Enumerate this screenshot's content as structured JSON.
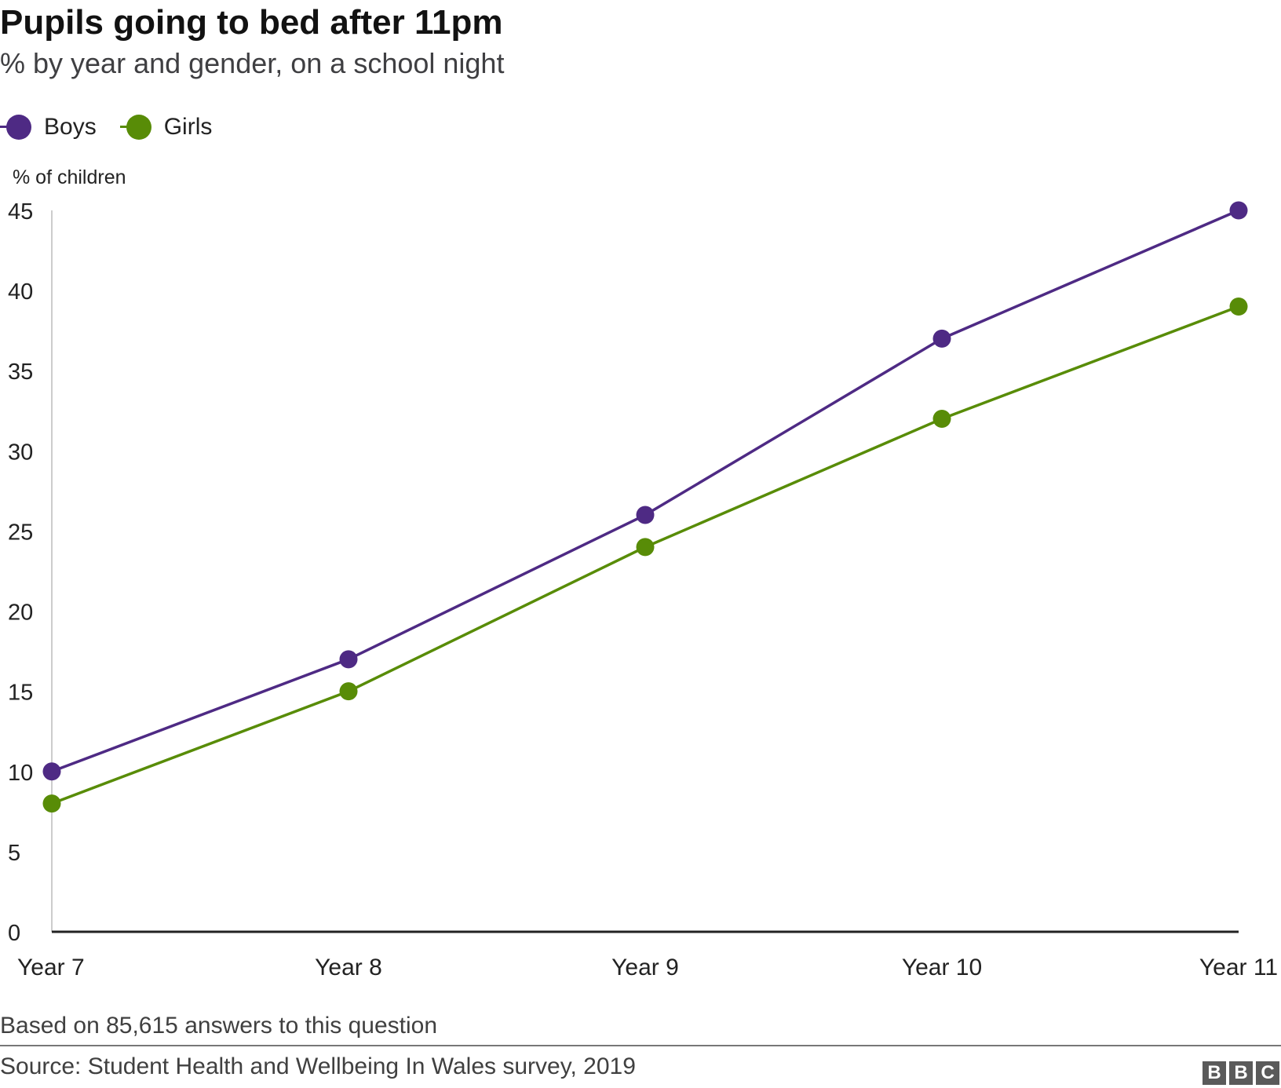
{
  "title": "Pupils going to bed after 11pm",
  "subtitle": "% by year and gender, on a school night",
  "legend": [
    {
      "label": "Boys",
      "color": "#4e2a84"
    },
    {
      "label": "Girls",
      "color": "#588c07"
    }
  ],
  "footer": {
    "note": "Based on 85,615 answers to this question",
    "source": "Source: Student Health and Wellbeing In Wales survey, 2019",
    "logo_letters": [
      "B",
      "B",
      "C"
    ]
  },
  "chart_data": {
    "type": "line",
    "title": "Pupils going to bed after 11pm",
    "subtitle": "% by year and gender, on a school night",
    "ylabel": "% of children",
    "xlabel": "",
    "categories": [
      "Year 7",
      "Year 8",
      "Year 9",
      "Year 10",
      "Year 11"
    ],
    "series": [
      {
        "name": "Boys",
        "color": "#4e2a84",
        "values": [
          10,
          17,
          26,
          37,
          45
        ]
      },
      {
        "name": "Girls",
        "color": "#588c07",
        "values": [
          8,
          15,
          24,
          32,
          39
        ]
      }
    ],
    "ylim": [
      0,
      45
    ],
    "yticks": [
      0,
      5,
      10,
      15,
      20,
      25,
      30,
      35,
      40,
      45
    ],
    "grid": false,
    "legend_position": "top-left"
  }
}
